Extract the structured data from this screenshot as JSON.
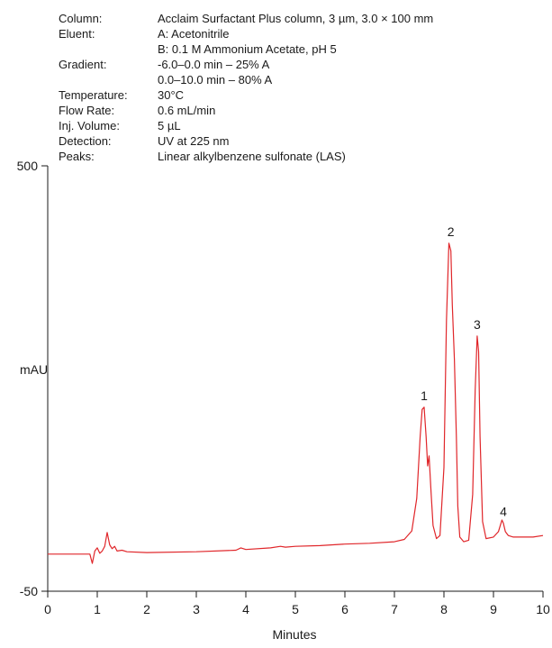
{
  "conditions": [
    {
      "label": "Column:",
      "value": "Acclaim Surfactant Plus column, 3 µm, 3.0 × 100 mm"
    },
    {
      "label": "Eluent:",
      "value": "A: Acetonitrile"
    },
    {
      "label": "",
      "value": "B: 0.1 M Ammonium Acetate, pH 5"
    },
    {
      "label": "Gradient:",
      "value": "-6.0–0.0 min – 25% A"
    },
    {
      "label": "",
      "value": "0.0–10.0 min – 80% A"
    },
    {
      "label": "Temperature:",
      "value": "30°C"
    },
    {
      "label": "Flow Rate:",
      "value": "0.6 mL/min"
    },
    {
      "label": "Inj. Volume:",
      "value": "5 µL"
    },
    {
      "label": "Detection:",
      "value": "UV at 225 nm"
    },
    {
      "label": "Peaks:",
      "value": "Linear alkylbenzene sulfonate (LAS)"
    }
  ],
  "chart_data": {
    "type": "line",
    "title": "",
    "xlabel": "Minutes",
    "ylabel": "mAU",
    "xlim": [
      0,
      10
    ],
    "ylim": [
      -50,
      500
    ],
    "x_ticks": [
      "0",
      "1",
      "2",
      "3",
      "4",
      "5",
      "6",
      "7",
      "8",
      "9",
      "10"
    ],
    "y_ticks": [
      "500",
      "-50"
    ],
    "grid": false,
    "line_color": "#e0262a",
    "series": [
      {
        "x": [
          0,
          0.5,
          0.85,
          0.9,
          0.95,
          1.0,
          1.05,
          1.1,
          1.15,
          1.2,
          1.25,
          1.3,
          1.35,
          1.4,
          1.5,
          1.6,
          2.0,
          3.0,
          3.8,
          3.9,
          4.0,
          4.5,
          4.7,
          4.8,
          5.0,
          5.5,
          6.0,
          6.5,
          7.0,
          7.2,
          7.35,
          7.45,
          7.52,
          7.56,
          7.6,
          7.64,
          7.67,
          7.7,
          7.74,
          7.78,
          7.85,
          7.92,
          8.0,
          8.05,
          8.1,
          8.14,
          8.17,
          8.21,
          8.25,
          8.28,
          8.32,
          8.4,
          8.5,
          8.58,
          8.63,
          8.67,
          8.7,
          8.73,
          8.78,
          8.85,
          9.0,
          9.1,
          9.17,
          9.2,
          9.24,
          9.3,
          9.4,
          9.6,
          9.8,
          10.0
        ],
        "y": [
          -2,
          -2,
          -2,
          -14,
          2,
          6,
          -1,
          2,
          8,
          26,
          10,
          5,
          8,
          2,
          3,
          1,
          0,
          1,
          3,
          6,
          4,
          6,
          8,
          7,
          8,
          9,
          11,
          12,
          14,
          17,
          28,
          70,
          150,
          185,
          188,
          150,
          112,
          125,
          78,
          35,
          18,
          22,
          110,
          300,
          400,
          390,
          320,
          250,
          150,
          60,
          20,
          14,
          16,
          75,
          210,
          280,
          260,
          150,
          40,
          18,
          20,
          27,
          42,
          38,
          27,
          22,
          20,
          20,
          20,
          22
        ]
      }
    ],
    "peak_labels": [
      {
        "label": "1",
        "x": 7.6,
        "y": 188
      },
      {
        "label": "2",
        "x": 8.14,
        "y": 400
      },
      {
        "label": "3",
        "x": 8.67,
        "y": 280
      },
      {
        "label": "4",
        "x": 9.2,
        "y": 38
      }
    ]
  }
}
